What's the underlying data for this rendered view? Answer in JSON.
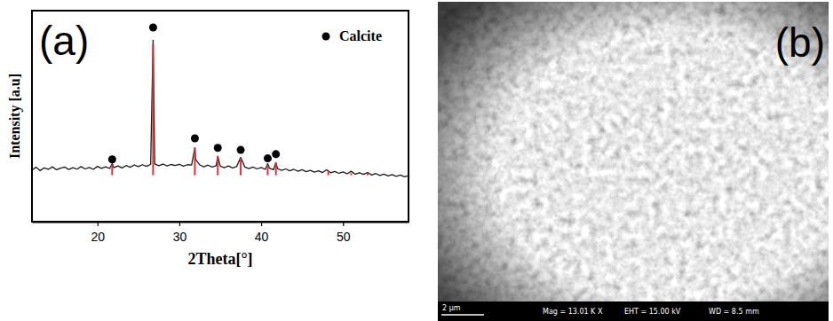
{
  "chart_data": {
    "type": "line",
    "panel_label": "(a)",
    "x_label": "2Theta[°]",
    "y_label": "Intensity [a.u]",
    "xlim": [
      12,
      58
    ],
    "ylim": [
      0,
      100
    ],
    "xticks": [
      20,
      30,
      40,
      50
    ],
    "tick_labels": "x",
    "grid": false,
    "legend": "top-right",
    "series": [
      {
        "type": "line",
        "color": "#1a1a1a",
        "x": [
          12,
          12.5,
          13,
          13.5,
          14,
          14.5,
          15,
          15.5,
          16,
          16.5,
          17,
          17.5,
          18,
          18.5,
          19,
          19.5,
          20,
          20.5,
          21,
          21.5,
          21.8,
          22,
          22.5,
          23,
          23.5,
          24,
          24.5,
          25,
          25.5,
          26,
          26.5,
          26.8,
          27,
          27.5,
          28,
          28.5,
          29,
          29.5,
          30,
          30.5,
          31,
          31.5,
          31.9,
          32,
          32.5,
          33,
          33.5,
          34,
          34.5,
          34.7,
          35,
          35.5,
          36,
          36.5,
          37,
          37.5,
          38,
          38.5,
          39,
          39.5,
          40,
          40.5,
          40.8,
          41,
          41.5,
          41.8,
          42,
          42.5,
          43,
          43.5,
          44,
          44.5,
          45,
          45.5,
          46,
          46.5,
          47,
          47.5,
          48,
          48.5,
          49,
          49.5,
          50,
          50.5,
          51,
          51.5,
          52,
          52.5,
          53,
          53.5,
          54,
          54.5,
          55,
          55.5,
          56,
          56.5,
          57,
          57.5,
          58
        ],
        "values": [
          24.5,
          25.8,
          24.2,
          25.5,
          24.8,
          26.0,
          24.6,
          25.4,
          25.9,
          24.7,
          25.6,
          24.9,
          26.1,
          25.0,
          25.7,
          24.8,
          26.2,
          25.3,
          26.0,
          25.2,
          27.5,
          25.6,
          26.4,
          25.5,
          26.6,
          25.8,
          26.9,
          26.1,
          27.0,
          26.2,
          27.2,
          86.0,
          27.4,
          26.5,
          27.3,
          26.4,
          27.1,
          26.6,
          27.2,
          26.3,
          27.0,
          26.8,
          35.0,
          29.5,
          26.9,
          26.0,
          26.8,
          25.9,
          26.5,
          31.0,
          26.3,
          25.6,
          26.4,
          25.5,
          26.1,
          30.5,
          25.9,
          25.2,
          25.9,
          25.0,
          25.7,
          24.8,
          27.5,
          25.4,
          24.6,
          28.0,
          25.1,
          24.3,
          25.0,
          24.1,
          24.8,
          23.9,
          24.6,
          23.7,
          24.3,
          23.5,
          24.1,
          23.3,
          24.6,
          23.2,
          23.8,
          22.9,
          23.6,
          22.7,
          23.9,
          22.5,
          23.2,
          22.4,
          23.3,
          22.1,
          22.8,
          21.9,
          22.5,
          21.7,
          22.3,
          21.5,
          22.1,
          21.3,
          21.8
        ]
      },
      {
        "type": "stick",
        "color": "#e0303a",
        "x": [
          21.8,
          26.8,
          31.9,
          34.7,
          37.5,
          40.8,
          41.8,
          48.2,
          51.0,
          53.0
        ],
        "base": [
          22,
          22,
          22,
          22,
          22,
          22,
          22,
          22,
          22,
          22
        ],
        "values": [
          27,
          84,
          35,
          31,
          30,
          27,
          28,
          24,
          23,
          23
        ]
      },
      {
        "name": "Calcite",
        "type": "scatter",
        "marker": "circle",
        "color": "#000000",
        "x": [
          21.8,
          26.8,
          31.9,
          34.7,
          37.5,
          40.8,
          41.8
        ],
        "values": [
          29.5,
          92,
          39.5,
          35,
          34,
          30,
          32
        ]
      }
    ]
  },
  "sem_image": {
    "label": "(b)",
    "scale_bar": "2 µm",
    "info": [
      "Mag = 13.01 K X",
      "EHT = 15.00 kV",
      "WD = 8.5 mm"
    ]
  }
}
